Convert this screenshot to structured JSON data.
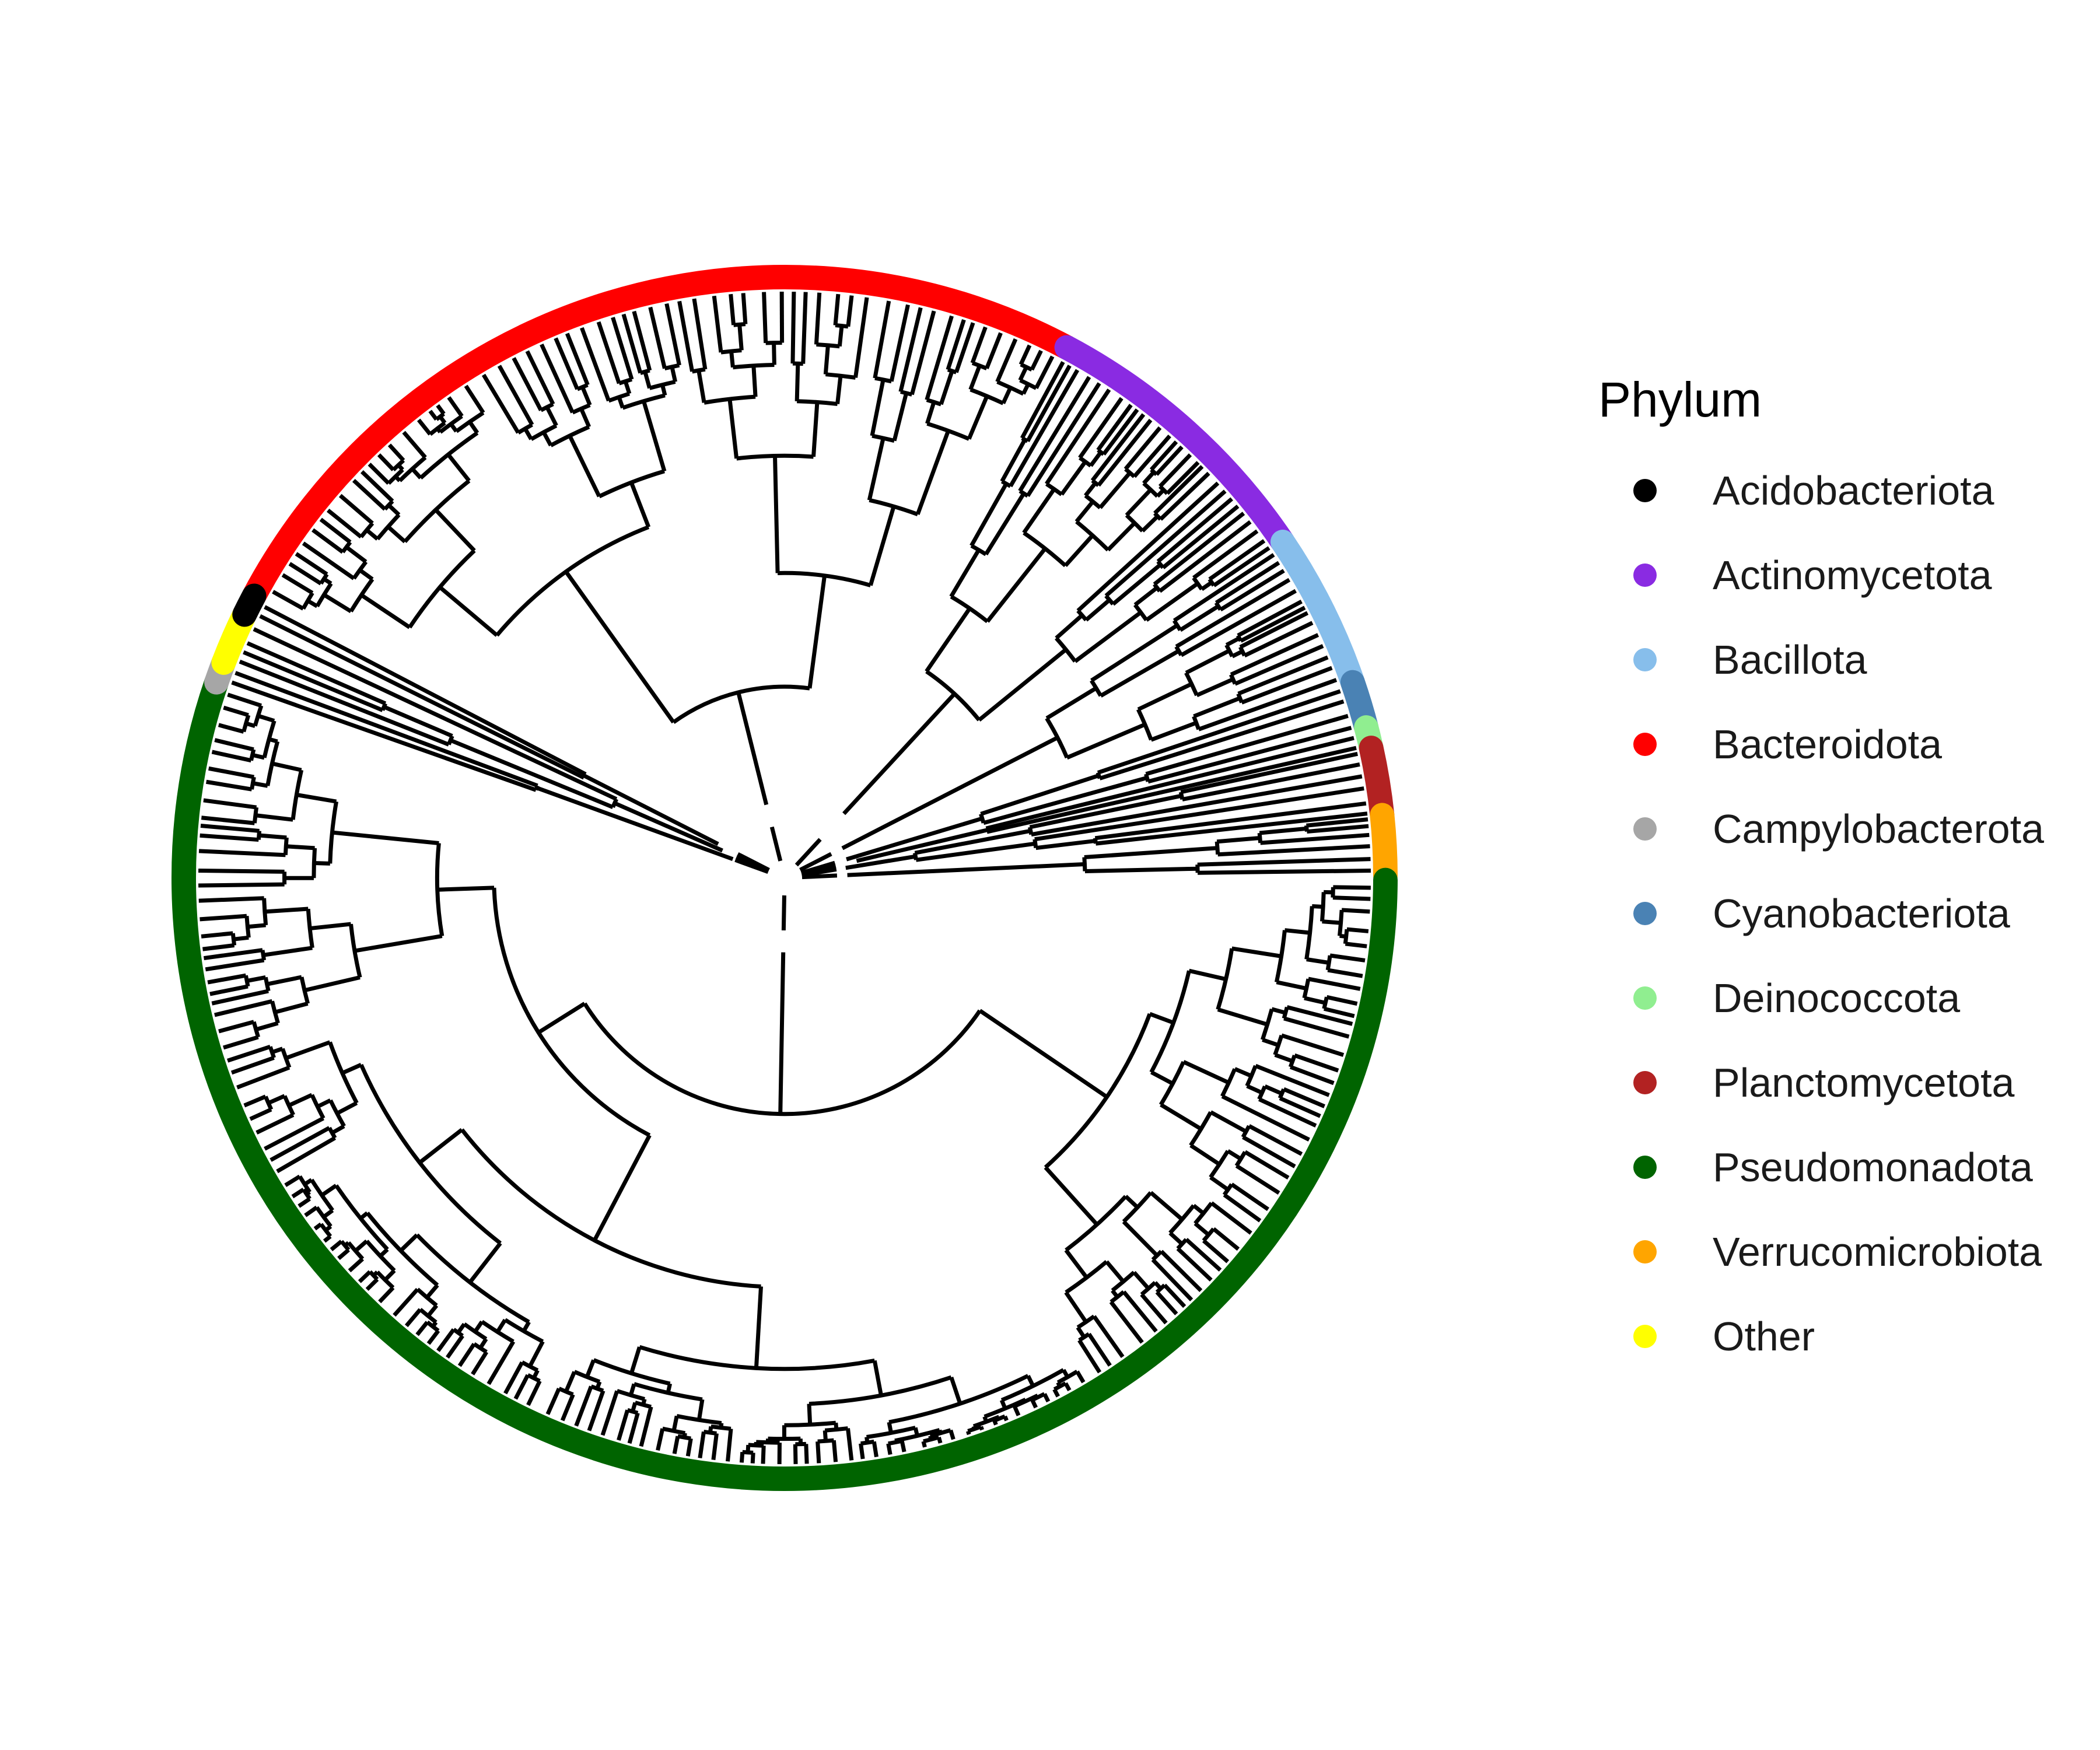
{
  "legend": {
    "title": "Phylum",
    "items": [
      {
        "label": "Acidobacteriota",
        "color": "#000000"
      },
      {
        "label": "Actinomycetota",
        "color": "#8A2BE2"
      },
      {
        "label": "Bacillota",
        "color": "#87BEEB"
      },
      {
        "label": "Bacteroidota",
        "color": "#FF0000"
      },
      {
        "label": "Campylobacterota",
        "color": "#A6A6A6"
      },
      {
        "label": "Cyanobacteriota",
        "color": "#4A82B4"
      },
      {
        "label": "Deinococcota",
        "color": "#90EE90"
      },
      {
        "label": "Planctomycetota",
        "color": "#B22222"
      },
      {
        "label": "Pseudomonadota",
        "color": "#006400"
      },
      {
        "label": "Verrucomicrobiota",
        "color": "#FFA500"
      },
      {
        "label": "Other",
        "color": "#FFFF00"
      }
    ]
  },
  "tree": {
    "layout": "circular",
    "branch_color": "#000000",
    "ring_order_clockwise_from_top": [
      "Bacteroidota",
      "Actinomycetota",
      "Bacillota",
      "Cyanobacteriota",
      "Deinococcota",
      "Planctomycetota",
      "Verrucomicrobiota",
      "Pseudomonadota",
      "Campylobacterota",
      "Other",
      "Acidobacteriota"
    ]
  }
}
